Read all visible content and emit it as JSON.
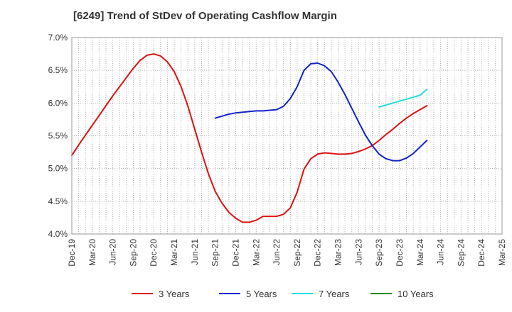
{
  "chart_data": {
    "type": "line",
    "title": "[6249]  Trend of StDev of Operating Cashflow Margin",
    "xlabel": "",
    "ylabel": "",
    "ylim": [
      4.0,
      7.0
    ],
    "y_ticks": [
      "4.0%",
      "4.5%",
      "5.0%",
      "5.5%",
      "6.0%",
      "6.5%",
      "7.0%"
    ],
    "x_ticks": [
      "Dec-19",
      "Mar-20",
      "Jun-20",
      "Sep-20",
      "Dec-20",
      "Mar-21",
      "Jun-21",
      "Sep-21",
      "Dec-21",
      "Mar-22",
      "Jun-22",
      "Sep-22",
      "Dec-22",
      "Mar-23",
      "Jun-23",
      "Sep-23",
      "Dec-23",
      "Mar-24",
      "Jun-24",
      "Sep-24",
      "Dec-24",
      "Mar-25"
    ],
    "grid": true,
    "legend_position": "bottom",
    "series": [
      {
        "name": "3 Years",
        "color": "#dd1111",
        "points": [
          [
            "Dec-19",
            5.2
          ],
          [
            "Jan-20",
            5.36
          ],
          [
            "Feb-20",
            5.51
          ],
          [
            "Mar-20",
            5.66
          ],
          [
            "Apr-20",
            5.81
          ],
          [
            "May-20",
            5.96
          ],
          [
            "Jun-20",
            6.11
          ],
          [
            "Jul-20",
            6.25
          ],
          [
            "Aug-20",
            6.39
          ],
          [
            "Sep-20",
            6.53
          ],
          [
            "Oct-20",
            6.65
          ],
          [
            "Nov-20",
            6.73
          ],
          [
            "Dec-20",
            6.75
          ],
          [
            "Jan-21",
            6.72
          ],
          [
            "Feb-21",
            6.63
          ],
          [
            "Mar-21",
            6.48
          ],
          [
            "Apr-21",
            6.25
          ],
          [
            "May-21",
            5.95
          ],
          [
            "Jun-21",
            5.6
          ],
          [
            "Jul-21",
            5.25
          ],
          [
            "Aug-21",
            4.92
          ],
          [
            "Sep-21",
            4.65
          ],
          [
            "Oct-21",
            4.47
          ],
          [
            "Nov-21",
            4.33
          ],
          [
            "Dec-21",
            4.24
          ],
          [
            "Jan-22",
            4.18
          ],
          [
            "Feb-22",
            4.18
          ],
          [
            "Mar-22",
            4.21
          ],
          [
            "Apr-22",
            4.27
          ],
          [
            "May-22",
            4.27
          ],
          [
            "Jun-22",
            4.27
          ],
          [
            "Jul-22",
            4.3
          ],
          [
            "Aug-22",
            4.4
          ],
          [
            "Sep-22",
            4.64
          ],
          [
            "Oct-22",
            4.99
          ],
          [
            "Nov-22",
            5.15
          ],
          [
            "Dec-22",
            5.22
          ],
          [
            "Jan-23",
            5.24
          ],
          [
            "Feb-23",
            5.23
          ],
          [
            "Mar-23",
            5.22
          ],
          [
            "Apr-23",
            5.22
          ],
          [
            "May-23",
            5.23
          ],
          [
            "Jun-23",
            5.26
          ],
          [
            "Jul-23",
            5.3
          ],
          [
            "Aug-23",
            5.35
          ],
          [
            "Sep-23",
            5.43
          ],
          [
            "Oct-23",
            5.52
          ],
          [
            "Nov-23",
            5.6
          ],
          [
            "Dec-23",
            5.69
          ],
          [
            "Jan-24",
            5.77
          ],
          [
            "Feb-24",
            5.84
          ],
          [
            "Mar-24",
            5.9
          ],
          [
            "Apr-24",
            5.96
          ]
        ]
      },
      {
        "name": "5 Years",
        "color": "#1122cc",
        "points": [
          [
            "Sep-21",
            5.77
          ],
          [
            "Oct-21",
            5.8
          ],
          [
            "Nov-21",
            5.83
          ],
          [
            "Dec-21",
            5.85
          ],
          [
            "Jan-22",
            5.86
          ],
          [
            "Feb-22",
            5.87
          ],
          [
            "Mar-22",
            5.88
          ],
          [
            "Apr-22",
            5.88
          ],
          [
            "May-22",
            5.89
          ],
          [
            "Jun-22",
            5.9
          ],
          [
            "Jul-22",
            5.95
          ],
          [
            "Aug-22",
            6.07
          ],
          [
            "Sep-22",
            6.25
          ],
          [
            "Oct-22",
            6.5
          ],
          [
            "Nov-22",
            6.6
          ],
          [
            "Dec-22",
            6.61
          ],
          [
            "Jan-23",
            6.57
          ],
          [
            "Feb-23",
            6.48
          ],
          [
            "Mar-23",
            6.32
          ],
          [
            "Apr-23",
            6.13
          ],
          [
            "May-23",
            5.92
          ],
          [
            "Jun-23",
            5.71
          ],
          [
            "Jul-23",
            5.51
          ],
          [
            "Aug-23",
            5.35
          ],
          [
            "Sep-23",
            5.22
          ],
          [
            "Oct-23",
            5.15
          ],
          [
            "Nov-23",
            5.12
          ],
          [
            "Dec-23",
            5.12
          ],
          [
            "Jan-24",
            5.16
          ],
          [
            "Feb-24",
            5.23
          ],
          [
            "Mar-24",
            5.33
          ],
          [
            "Apr-24",
            5.43
          ]
        ]
      },
      {
        "name": "7 Years",
        "color": "#22dddd",
        "points": [
          [
            "Sep-23",
            5.94
          ],
          [
            "Dec-23",
            6.03
          ],
          [
            "Mar-24",
            6.12
          ],
          [
            "Apr-24",
            6.21
          ]
        ]
      },
      {
        "name": "10 Years",
        "color": "#228822",
        "points": []
      }
    ]
  }
}
